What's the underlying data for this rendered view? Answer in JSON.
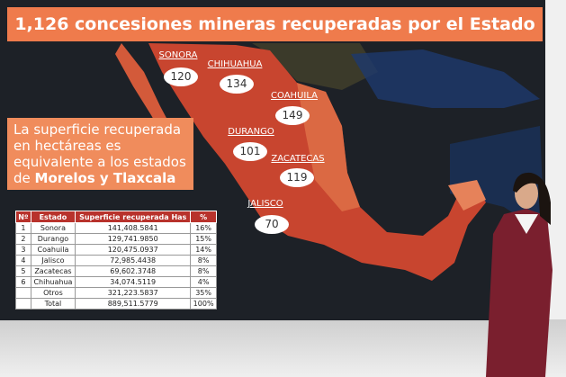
{
  "title": "1,126 concesiones mineras recuperadas por el Estado",
  "callout": {
    "text": "La superficie recuperada en hectáreas es equivalente a los estados de",
    "highlight": "Morelos y Tlaxcala"
  },
  "map_labels": [
    {
      "state": "SONORA",
      "count": "120"
    },
    {
      "state": "CHIHUAHUA",
      "count": "134"
    },
    {
      "state": "COAHUILA",
      "count": "149"
    },
    {
      "state": "DURANGO",
      "count": "101"
    },
    {
      "state": "ZACATECAS",
      "count": "119"
    },
    {
      "state": "JALISCO",
      "count": "70"
    }
  ],
  "table": {
    "header": [
      "Nº",
      "Estado",
      "Superficie recuperada Has",
      "%"
    ],
    "rows": [
      [
        "1",
        "Sonora",
        "141,408.5841",
        "16%"
      ],
      [
        "2",
        "Durango",
        "129,741.9850",
        "15%"
      ],
      [
        "3",
        "Coahuila",
        "120,475.0937",
        "14%"
      ],
      [
        "4",
        "Jalisco",
        "72,985.4438",
        "8%"
      ],
      [
        "5",
        "Zacatecas",
        "69,602.3748",
        "8%"
      ],
      [
        "6",
        "Chihuahua",
        "34,074.5119",
        "4%"
      ],
      [
        "",
        "Otros",
        "321,223.5837",
        "35%"
      ],
      [
        "",
        "Total",
        "889,511.5779",
        "100%"
      ]
    ]
  }
}
